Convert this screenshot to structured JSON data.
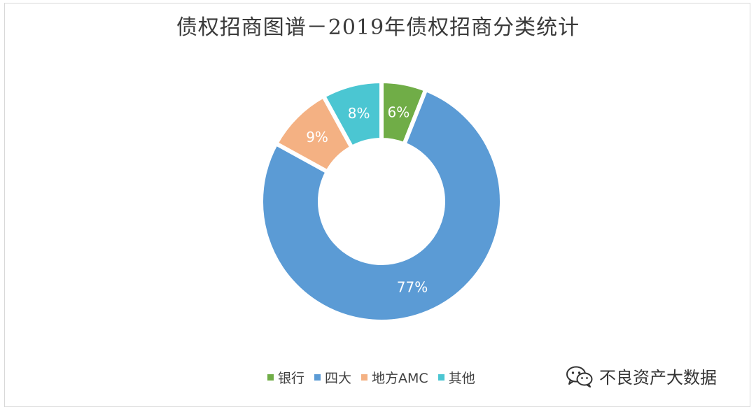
{
  "title": "债权招商图谱－2019年债权招商分类统计",
  "chart_data": {
    "type": "pie",
    "variant": "donut",
    "title": "债权招商图谱－2019年债权招商分类统计",
    "categories": [
      "银行",
      "四大",
      "地方AMC",
      "其他"
    ],
    "values": [
      6,
      77,
      9,
      8
    ],
    "labels": [
      "6%",
      "77%",
      "9%",
      "8%"
    ],
    "unit": "%",
    "colors": [
      "#70ad47",
      "#5b9bd5",
      "#f4b183",
      "#4bc6d2"
    ],
    "legend_position": "bottom"
  },
  "watermark": {
    "text": "不良资产大数据",
    "icon": "wechat-icon"
  }
}
